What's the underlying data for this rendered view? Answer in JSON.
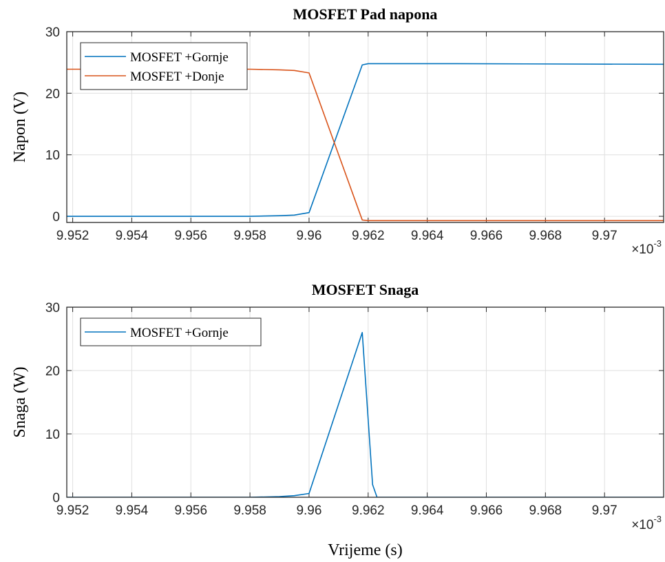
{
  "chart_data": [
    {
      "type": "line",
      "title": "MOSFET Pad napona",
      "xlabel": "",
      "ylabel": "Napon (V)",
      "x_exponent_label": "×10",
      "x_exponent_power": "-3",
      "xlim": [
        9.9518,
        9.972
      ],
      "ylim": [
        -1,
        30
      ],
      "xticks": [
        9.952,
        9.954,
        9.956,
        9.958,
        9.96,
        9.962,
        9.964,
        9.966,
        9.968,
        9.97
      ],
      "xtick_labels": [
        "9.952",
        "9.954",
        "9.956",
        "9.958",
        "9.96",
        "9.962",
        "9.964",
        "9.966",
        "9.968",
        "9.97"
      ],
      "yticks": [
        0,
        10,
        20,
        30
      ],
      "ytick_labels": [
        "0",
        "10",
        "20",
        "30"
      ],
      "grid": true,
      "legend_position": "top-left",
      "series": [
        {
          "name": "MOSFET +Gornje",
          "color": "#0072BD",
          "x": [
            9.9518,
            9.956,
            9.958,
            9.959,
            9.9595,
            9.96,
            9.9618,
            9.962,
            9.965,
            9.972
          ],
          "y": [
            0,
            0,
            0,
            0.1,
            0.2,
            0.6,
            24.6,
            24.8,
            24.8,
            24.7
          ]
        },
        {
          "name": "MOSFET +Donje",
          "color": "#D95319",
          "x": [
            9.9518,
            9.958,
            9.959,
            9.9595,
            9.96,
            9.9618,
            9.962,
            9.972
          ],
          "y": [
            23.9,
            23.9,
            23.8,
            23.7,
            23.3,
            -0.6,
            -0.7,
            -0.7
          ]
        }
      ]
    },
    {
      "type": "line",
      "title": "MOSFET Snaga",
      "xlabel": "Vrijeme (s)",
      "ylabel": "Snaga (W)",
      "x_exponent_label": "×10",
      "x_exponent_power": "-3",
      "xlim": [
        9.9518,
        9.972
      ],
      "ylim": [
        0,
        30
      ],
      "xticks": [
        9.952,
        9.954,
        9.956,
        9.958,
        9.96,
        9.962,
        9.964,
        9.966,
        9.968,
        9.97
      ],
      "xtick_labels": [
        "9.952",
        "9.954",
        "9.956",
        "9.958",
        "9.96",
        "9.962",
        "9.964",
        "9.966",
        "9.968",
        "9.97"
      ],
      "yticks": [
        0,
        10,
        20,
        30
      ],
      "ytick_labels": [
        "0",
        "10",
        "20",
        "30"
      ],
      "grid": true,
      "legend_position": "top-left",
      "series": [
        {
          "name": "MOSFET +Gornje",
          "color": "#0072BD",
          "x": [
            9.9518,
            9.958,
            9.959,
            9.9595,
            9.96,
            9.9618,
            9.96215,
            9.9623,
            9.972
          ],
          "y": [
            0,
            0,
            0.1,
            0.25,
            0.6,
            26.0,
            2.0,
            0,
            0
          ]
        }
      ]
    }
  ]
}
